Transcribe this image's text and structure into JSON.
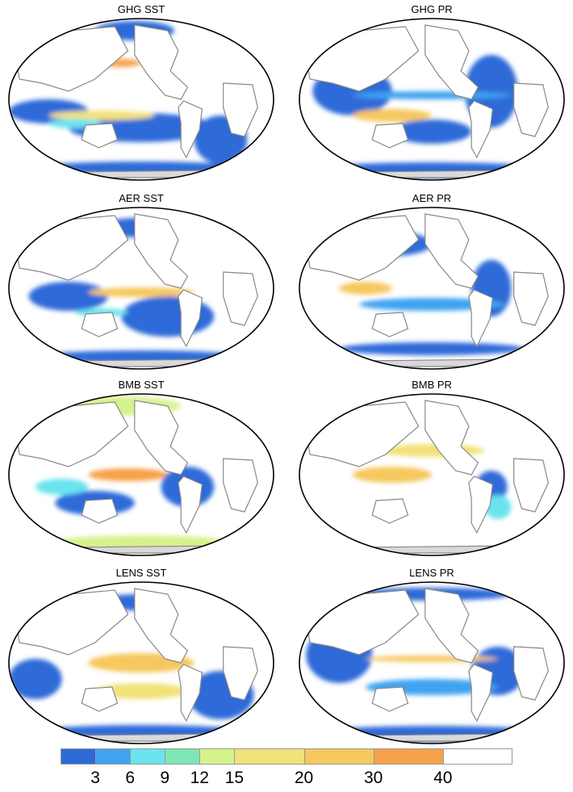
{
  "panels": [
    {
      "id": "ghg-sst",
      "title": "GHG SST",
      "variable": "SST"
    },
    {
      "id": "ghg-pr",
      "title": "GHG PR",
      "variable": "PR"
    },
    {
      "id": "aer-sst",
      "title": "AER SST",
      "variable": "SST"
    },
    {
      "id": "aer-pr",
      "title": "AER PR",
      "variable": "PR"
    },
    {
      "id": "bmb-sst",
      "title": "BMB SST",
      "variable": "SST"
    },
    {
      "id": "bmb-pr",
      "title": "BMB PR",
      "variable": "PR"
    },
    {
      "id": "lens-sst",
      "title": "LENS SST",
      "variable": "SST"
    },
    {
      "id": "lens-pr",
      "title": "LENS PR",
      "variable": "PR"
    }
  ],
  "colorbar": {
    "labels": [
      "3",
      "6",
      "9",
      "12",
      "15",
      "20",
      "30",
      "40"
    ],
    "colors": [
      "#2e6ad8",
      "#3fa3f0",
      "#6be3ef",
      "#7fe6b6",
      "#d6f28c",
      "#f2e27a",
      "#f6c85e",
      "#f7a24a",
      "#ffffff"
    ],
    "bounds": [
      0,
      3,
      6,
      9,
      12,
      15,
      20,
      30,
      40,
      50
    ]
  },
  "colors": {
    "land": "#ffffff",
    "coast": "#888888",
    "outline": "#000000",
    "antarctica": "#d9d9d9"
  }
}
